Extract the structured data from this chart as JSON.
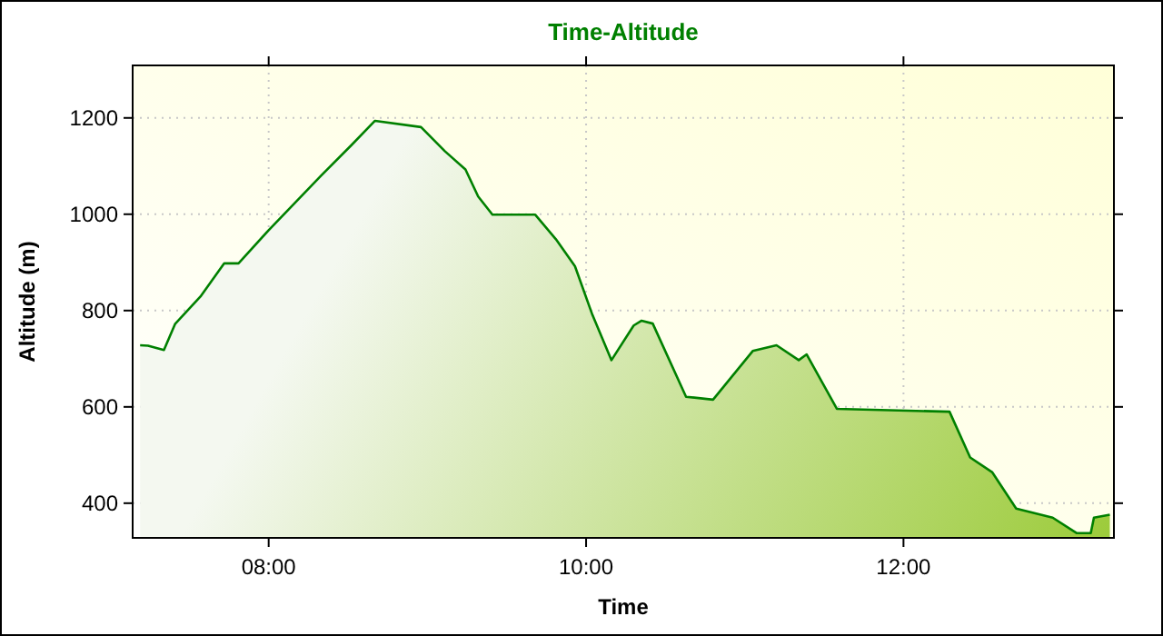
{
  "chart_data": {
    "type": "area",
    "title": "Time-Altitude",
    "xlabel": "Time",
    "ylabel": "Altitude (m)",
    "x": [
      7.19,
      7.24,
      7.34,
      7.41,
      7.57,
      7.72,
      7.81,
      8.0,
      8.33,
      8.52,
      8.67,
      8.96,
      9.11,
      9.24,
      9.32,
      9.41,
      9.68,
      9.81,
      9.93,
      10.04,
      10.16,
      10.3,
      10.35,
      10.42,
      10.63,
      10.8,
      11.05,
      11.2,
      11.34,
      11.39,
      11.58,
      12.29,
      12.42,
      12.56,
      12.71,
      12.94,
      13.09,
      13.18,
      13.2,
      13.3
    ],
    "series": [
      {
        "color": "#008000",
        "values": [
          728,
          727,
          718,
          772,
          829,
          898,
          898,
          967,
          1080,
          1143,
          1194,
          1181,
          1131,
          1093,
          1037,
          999,
          999,
          948,
          892,
          791,
          697,
          769,
          779,
          773,
          621,
          615,
          716,
          728,
          697,
          709,
          596,
          590,
          495,
          464,
          389,
          370,
          338,
          338,
          370,
          376
        ]
      }
    ],
    "xlim": [
      7.143,
      13.326
    ],
    "ylim": [
      328,
      1309
    ],
    "xticks": [
      {
        "value": 8,
        "label": "08:00"
      },
      {
        "value": 10,
        "label": "10:00"
      },
      {
        "value": 12,
        "label": "12:00"
      }
    ],
    "yticks": [
      400,
      600,
      800,
      1000,
      1200
    ],
    "grid": true
  }
}
